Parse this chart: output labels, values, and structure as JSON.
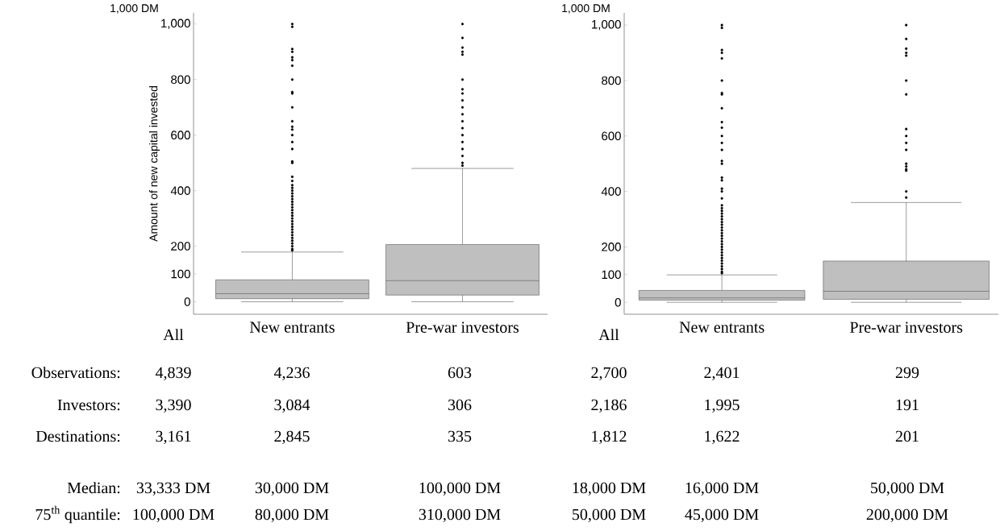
{
  "chart_data": [
    {
      "type": "box",
      "ylabel": "Amount of new capital invested",
      "categories": [
        "New entrants",
        "Pre-war investors"
      ],
      "color": "#bfbfbf",
      "ylim": [
        -45,
        1040
      ],
      "yticks": [
        0,
        100,
        200,
        400,
        600,
        800,
        {
          "value": 1000,
          "label": "1,000"
        }
      ],
      "boxes": [
        {
          "low": 0,
          "q1": 11,
          "median": 29,
          "q3": 79,
          "high": 179,
          "outliers": [
            185,
            190,
            200,
            210,
            220,
            230,
            240,
            250,
            260,
            270,
            280,
            290,
            300,
            310,
            320,
            330,
            340,
            350,
            360,
            370,
            380,
            390,
            400,
            410,
            420,
            435,
            450,
            500,
            505,
            550,
            575,
            600,
            620,
            630,
            650,
            700,
            750,
            755,
            800,
            850,
            870,
            880,
            900,
            910,
            990,
            1000
          ]
        },
        {
          "low": 0,
          "q1": 24,
          "median": 76,
          "q3": 206,
          "high": 480,
          "outliers": [
            490,
            500,
            525,
            550,
            575,
            600,
            625,
            650,
            675,
            700,
            725,
            750,
            765,
            800,
            890,
            900,
            915,
            950,
            1000
          ]
        }
      ],
      "annotations": [
        "1,000 DM",
        "All",
        "Observations:",
        "4,839",
        "4,236",
        "603",
        "Investors:",
        "3,390",
        "3,084",
        "306",
        "Destinations:",
        "3,161",
        "2,845",
        "335",
        "Median:",
        "33,333 DM",
        "30,000 DM",
        "100,000 DM",
        "75$^{th}$ quantile:",
        "100,000 DM",
        "80,000 DM",
        "310,000 DM"
      ]
    },
    {
      "type": "box",
      "categories": [
        "New entrants",
        "Pre-war investors"
      ],
      "color": "#bfbfbf",
      "ylim": [
        -43,
        1044
      ],
      "yticks": [
        0,
        100,
        200,
        400,
        600,
        800,
        {
          "value": 1000,
          "label": "1,000"
        }
      ],
      "boxes": [
        {
          "low": 0,
          "q1": 8,
          "median": 16,
          "q3": 43,
          "high": 99,
          "outliers": [
            105,
            110,
            120,
            130,
            140,
            150,
            160,
            170,
            180,
            190,
            200,
            210,
            220,
            230,
            240,
            250,
            260,
            270,
            280,
            290,
            300,
            310,
            320,
            330,
            340,
            350,
            375,
            400,
            410,
            440,
            450,
            500,
            510,
            550,
            575,
            600,
            630,
            650,
            700,
            750,
            755,
            800,
            880,
            900,
            910,
            990,
            1000
          ]
        },
        {
          "low": 0,
          "q1": 11,
          "median": 40,
          "q3": 149,
          "high": 360,
          "outliers": [
            378,
            400,
            475,
            480,
            490,
            500,
            550,
            575,
            600,
            625,
            750,
            800,
            890,
            900,
            915,
            950,
            1000
          ]
        }
      ],
      "annotations": [
        "1,000 DM",
        "All",
        "2,700",
        "2,401",
        "299",
        "2,186",
        "1,995",
        "191",
        "1,812",
        "1,622",
        "201",
        "18,000 DM",
        "16,000 DM",
        "50,000 DM",
        "50,000 DM",
        "45,000 DM",
        "200,000 DM"
      ]
    }
  ]
}
